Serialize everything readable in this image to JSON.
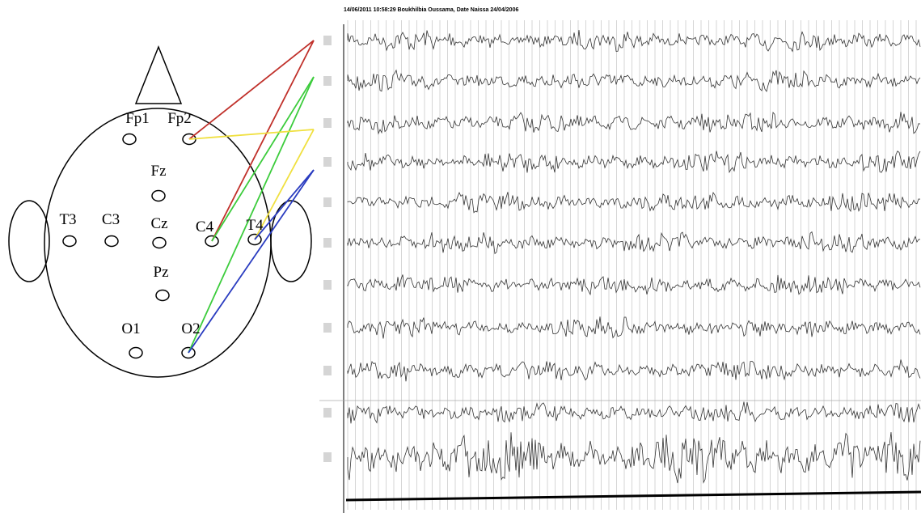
{
  "electrodes": [
    {
      "label": "Fp1"
    },
    {
      "label": "Fp2"
    },
    {
      "label": "Fz"
    },
    {
      "label": "T3"
    },
    {
      "label": "C3"
    },
    {
      "label": "Cz"
    },
    {
      "label": "C4"
    },
    {
      "label": "T4"
    },
    {
      "label": "Pz"
    },
    {
      "label": "O1"
    },
    {
      "label": "O2"
    }
  ],
  "recording": {
    "header": "14/06/2011 10:58:29   Boukhilbia Oussama, Date Naissa 24/04/2006"
  }
}
